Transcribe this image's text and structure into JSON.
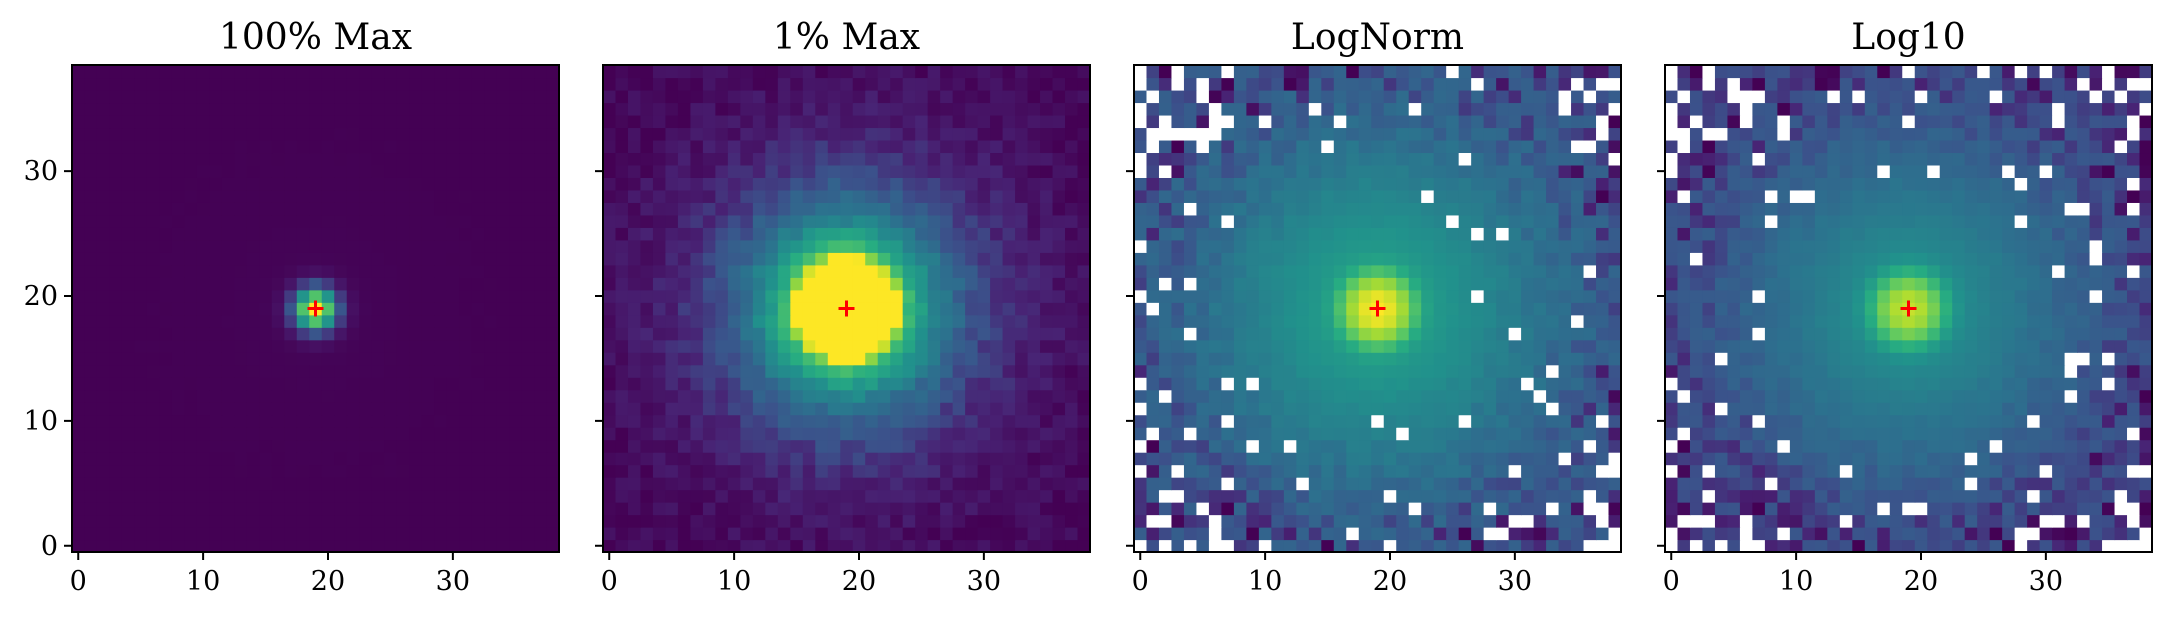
{
  "chart_data": [
    {
      "type": "heatmap",
      "title": "100% Max",
      "xlabel": "",
      "ylabel": "",
      "xlim": [
        -0.5,
        38.5
      ],
      "ylim": [
        -0.5,
        38.5
      ],
      "xticks": [
        0,
        10,
        20,
        30
      ],
      "yticks": [
        0,
        10,
        20,
        30
      ],
      "show_ytick_labels": true,
      "marker": {
        "x": 19,
        "y": 19,
        "symbol": "+",
        "color": "#ff0000"
      },
      "colormap": "viridis",
      "scale": "linear (full maximum)",
      "grid_size": 39
    },
    {
      "type": "heatmap",
      "title": "1% Max",
      "xlabel": "",
      "ylabel": "",
      "xlim": [
        -0.5,
        38.5
      ],
      "ylim": [
        -0.5,
        38.5
      ],
      "xticks": [
        0,
        10,
        20,
        30
      ],
      "yticks": [
        0,
        10,
        20,
        30
      ],
      "show_ytick_labels": false,
      "marker": {
        "x": 19,
        "y": 19,
        "symbol": "+",
        "color": "#ff0000"
      },
      "colormap": "viridis",
      "scale": "linear (clipped at 1% of maximum)",
      "grid_size": 39
    },
    {
      "type": "heatmap",
      "title": "LogNorm",
      "xlabel": "",
      "ylabel": "",
      "xlim": [
        -0.5,
        38.5
      ],
      "ylim": [
        -0.5,
        38.5
      ],
      "xticks": [
        0,
        10,
        20,
        30
      ],
      "yticks": [
        0,
        10,
        20,
        30
      ],
      "show_ytick_labels": false,
      "marker": {
        "x": 19,
        "y": 19,
        "symbol": "+",
        "color": "#ff0000"
      },
      "colormap": "viridis",
      "scale": "log (non-positive pixels blank)",
      "grid_size": 39
    },
    {
      "type": "heatmap",
      "title": "Log10",
      "xlabel": "",
      "ylabel": "",
      "xlim": [
        -0.5,
        38.5
      ],
      "ylim": [
        -0.5,
        38.5
      ],
      "xticks": [
        0,
        10,
        20,
        30
      ],
      "yticks": [
        0,
        10,
        20,
        30
      ],
      "show_ytick_labels": false,
      "marker": {
        "x": 19,
        "y": 19,
        "symbol": "+",
        "color": "#ff0000"
      },
      "colormap": "viridis",
      "scale": "log10 (non-positive pixels blank)",
      "grid_size": 39
    }
  ]
}
